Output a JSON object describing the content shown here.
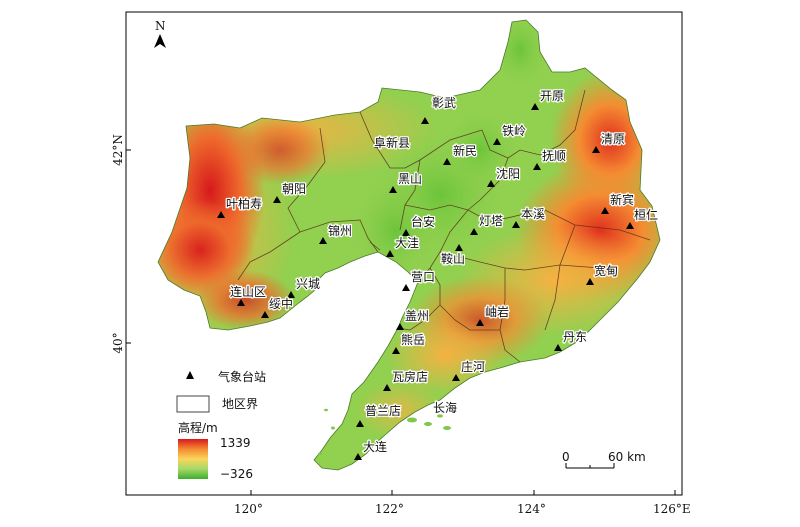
{
  "north_label": "N",
  "lon_ticks": [
    "120°",
    "122°",
    "124°",
    "126°E"
  ],
  "lat_ticks": [
    "42°N",
    "40°"
  ],
  "legend": {
    "station_label": "气象台站",
    "boundary_label": "地区界",
    "elevation_title": "高程/m",
    "elevation_max": "1339",
    "elevation_min": "−326",
    "ramp_colors": [
      "#d7191c",
      "#f58a30",
      "#f9d55c",
      "#a6d96a",
      "#3fae2c"
    ]
  },
  "scale_bar": {
    "zero_label": "0",
    "distance_label": "60 km"
  },
  "stations": [
    {
      "name": "彰武"
    },
    {
      "name": "开原"
    },
    {
      "name": "阜新县"
    },
    {
      "name": "铁岭"
    },
    {
      "name": "新民"
    },
    {
      "name": "抚顺"
    },
    {
      "name": "清原"
    },
    {
      "name": "朝阳"
    },
    {
      "name": "黑山"
    },
    {
      "name": "沈阳"
    },
    {
      "name": "叶柏寿"
    },
    {
      "name": "台安"
    },
    {
      "name": "灯塔"
    },
    {
      "name": "本溪"
    },
    {
      "name": "新宾"
    },
    {
      "name": "桓仁"
    },
    {
      "name": "锦州"
    },
    {
      "name": "大洼"
    },
    {
      "name": "鞍山"
    },
    {
      "name": "营口"
    },
    {
      "name": "宽甸"
    },
    {
      "name": "连山区"
    },
    {
      "name": "兴城"
    },
    {
      "name": "绥中"
    },
    {
      "name": "盖州"
    },
    {
      "name": "岫岩"
    },
    {
      "name": "丹东"
    },
    {
      "name": "熊岳"
    },
    {
      "name": "庄河"
    },
    {
      "name": "瓦房店"
    },
    {
      "name": "普兰店"
    },
    {
      "name": "大连"
    }
  ],
  "sea_label": "长海"
}
